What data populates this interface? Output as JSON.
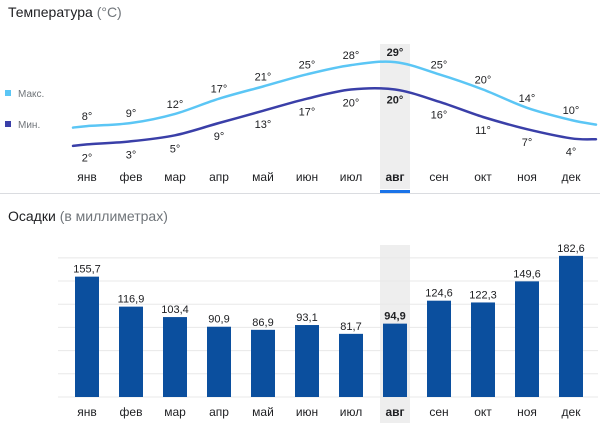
{
  "temperature": {
    "title": "Температура",
    "unit": "(°C)",
    "legend": {
      "max": "Макс.",
      "min": "Мин."
    }
  },
  "precipitation": {
    "title": "Осадки",
    "unit": "(в миллиметрах)"
  },
  "colors": {
    "max_line": "#5bc6f5",
    "min_line": "#3a3fa8",
    "bars": "#0b4f9e",
    "selected_band": "#eeeeee",
    "selected_underline": "#1a73e8",
    "grid": "#e8e8e8",
    "label": "#202124"
  },
  "selected_month": "авг",
  "chart_data": [
    {
      "type": "line",
      "title": "Температура (°C)",
      "categories": [
        "янв",
        "фев",
        "мар",
        "апр",
        "май",
        "июн",
        "июл",
        "авг",
        "сен",
        "окт",
        "ноя",
        "дек"
      ],
      "series": [
        {
          "name": "Макс.",
          "values": [
            8,
            9,
            12,
            17,
            21,
            25,
            28,
            29,
            25,
            20,
            14,
            10
          ]
        },
        {
          "name": "Мин.",
          "values": [
            2,
            3,
            5,
            9,
            13,
            17,
            20,
            20,
            16,
            11,
            7,
            4
          ]
        }
      ],
      "legend": "left",
      "highlight": "авг"
    },
    {
      "type": "bar",
      "title": "Осадки (в миллиметрах)",
      "categories": [
        "янв",
        "фев",
        "мар",
        "апр",
        "май",
        "июн",
        "июл",
        "авг",
        "сен",
        "окт",
        "ноя",
        "дек"
      ],
      "values": [
        155.7,
        116.9,
        103.4,
        90.9,
        86.9,
        93.1,
        81.7,
        94.9,
        124.6,
        122.3,
        149.6,
        182.6
      ],
      "value_labels": [
        "155,7",
        "116,9",
        "103,4",
        "90,9",
        "86,9",
        "93,1",
        "81,7",
        "94,9",
        "124,6",
        "122,3",
        "149,6",
        "182,6"
      ],
      "grid": true,
      "highlight": "авг"
    }
  ]
}
